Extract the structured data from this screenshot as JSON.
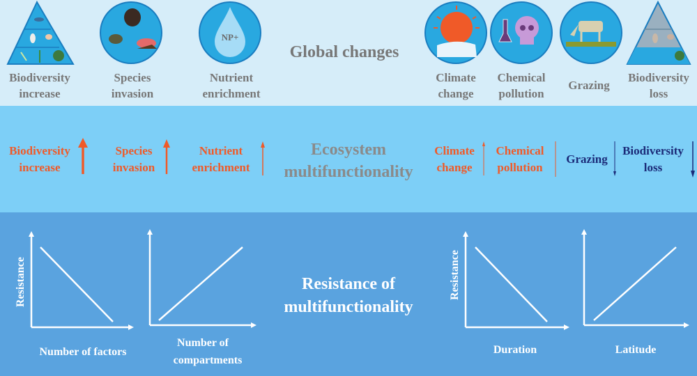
{
  "colors": {
    "top_band": "#d6edf9",
    "middle_band": "#7dcff7",
    "bottom_band": "#5aa3df",
    "increase": "#f05a28",
    "decrease": "#1b2a78",
    "gray_text": "#777777",
    "icon_circle": "#29a8e0"
  },
  "top": {
    "title": "Global changes",
    "items": [
      {
        "line1": "Biodiversity",
        "line2": "increase",
        "icon": "food-pyramid-icon"
      },
      {
        "line1": "Species",
        "line2": "invasion",
        "icon": "invasive-species-icon"
      },
      {
        "line1": "Nutrient",
        "line2": "enrichment",
        "icon": "water-drop-icon",
        "icon_text": "NP+"
      },
      {
        "line1": "Climate",
        "line2": "change",
        "icon": "sun-ice-icon"
      },
      {
        "line1": "Chemical",
        "line2": "pollution",
        "icon": "skull-flask-icon"
      },
      {
        "line1": "Grazing",
        "line2": "",
        "icon": "cow-icon"
      },
      {
        "line1": "Biodiversity",
        "line2": "loss",
        "icon": "faded-food-pyramid-icon"
      }
    ]
  },
  "middle": {
    "title_line1": "Ecosystem",
    "title_line2": "multifunctionality",
    "items": [
      {
        "line1": "Biodiversity",
        "line2": "increase",
        "direction": "up"
      },
      {
        "line1": "Species",
        "line2": "invasion",
        "direction": "up"
      },
      {
        "line1": "Nutrient",
        "line2": "enrichment",
        "direction": "up"
      },
      {
        "line1": "Climate",
        "line2": "change",
        "direction": "up"
      },
      {
        "line1": "Chemical",
        "line2": "pollution",
        "direction": "neutral"
      },
      {
        "line1": "Grazing",
        "line2": "",
        "direction": "down"
      },
      {
        "line1": "Biodiversity",
        "line2": "loss",
        "direction": "down"
      }
    ]
  },
  "bottom": {
    "title_line1": "Resistance of",
    "title_line2": "multifunctionality",
    "graphs": [
      {
        "ylabel": "Resistance",
        "xlabel_line1": "Number of factors",
        "xlabel_line2": "",
        "trend": "decreasing"
      },
      {
        "ylabel": "",
        "xlabel_line1": "Number of",
        "xlabel_line2": "compartments",
        "trend": "increasing"
      },
      {
        "ylabel": "Resistance",
        "xlabel_line1": "Duration",
        "xlabel_line2": "",
        "trend": "decreasing"
      },
      {
        "ylabel": "",
        "xlabel_line1": "Latitude",
        "xlabel_line2": "",
        "trend": "increasing"
      }
    ]
  }
}
